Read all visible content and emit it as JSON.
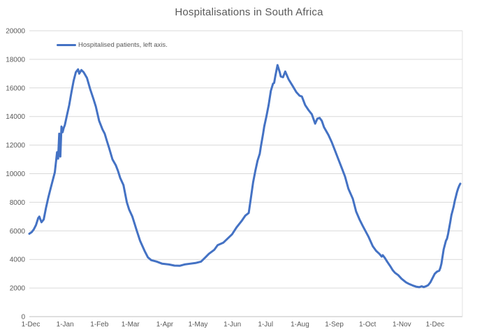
{
  "title": "Hospitalisations in South Africa",
  "legend": {
    "label": "Hospitalised patients, left axis."
  },
  "colors": {
    "background": "#FFFFFF",
    "line": "#4472C4",
    "gridline": "#D9D9D9",
    "axis_line": "#BFBFBF",
    "right_border": "#E0E0E0",
    "text": "#595959"
  },
  "chart_data": {
    "type": "line",
    "title": "Hospitalisations in South Africa",
    "xlabel": "",
    "ylabel": "",
    "grid": "horizontal",
    "legend_position": "top-left-inside",
    "legend_entries": [
      "Hospitalised patients, left axis."
    ],
    "ylim": [
      0,
      20000
    ],
    "y_ticks": [
      0,
      2000,
      4000,
      6000,
      8000,
      10000,
      12000,
      14000,
      16000,
      18000,
      20000
    ],
    "x_domain_days": [
      0,
      389
    ],
    "x_tick_days": [
      0,
      31,
      62,
      90,
      121,
      151,
      182,
      212,
      243,
      274,
      304,
      335,
      365
    ],
    "x_tick_labels": [
      "1-Dec",
      "1-Jan",
      "1-Feb",
      "1-Mar",
      "1-Apr",
      "1-May",
      "1-Jun",
      "1-Jul",
      "1-Aug",
      "1-Sep",
      "1-Oct",
      "1-Nov",
      "1-Dec"
    ],
    "series": [
      {
        "name": "Hospitalised patients, left axis.",
        "color": "#4472C4",
        "x_unit": "days since first 1-Dec",
        "points": [
          [
            0,
            5800
          ],
          [
            2,
            5900
          ],
          [
            4,
            6100
          ],
          [
            6,
            6400
          ],
          [
            8,
            6900
          ],
          [
            9,
            7000
          ],
          [
            11,
            6600
          ],
          [
            13,
            6800
          ],
          [
            15,
            7600
          ],
          [
            17,
            8300
          ],
          [
            19,
            8900
          ],
          [
            21,
            9500
          ],
          [
            23,
            10100
          ],
          [
            24,
            10800
          ],
          [
            25,
            11500
          ],
          [
            26,
            11050
          ],
          [
            27,
            12800
          ],
          [
            28,
            11200
          ],
          [
            29,
            13300
          ],
          [
            30,
            12900
          ],
          [
            31,
            13200
          ],
          [
            32,
            13400
          ],
          [
            34,
            14100
          ],
          [
            36,
            14800
          ],
          [
            38,
            15700
          ],
          [
            40,
            16500
          ],
          [
            42,
            17100
          ],
          [
            44,
            17300
          ],
          [
            45,
            17000
          ],
          [
            47,
            17250
          ],
          [
            49,
            17100
          ],
          [
            52,
            16700
          ],
          [
            55,
            15900
          ],
          [
            58,
            15200
          ],
          [
            60,
            14700
          ],
          [
            63,
            13700
          ],
          [
            66,
            13100
          ],
          [
            68,
            12800
          ],
          [
            70,
            12300
          ],
          [
            72,
            11800
          ],
          [
            75,
            11000
          ],
          [
            78,
            10600
          ],
          [
            80,
            10200
          ],
          [
            82,
            9700
          ],
          [
            85,
            9200
          ],
          [
            88,
            8000
          ],
          [
            90,
            7500
          ],
          [
            93,
            7000
          ],
          [
            95,
            6500
          ],
          [
            97,
            6000
          ],
          [
            100,
            5300
          ],
          [
            104,
            4600
          ],
          [
            107,
            4150
          ],
          [
            110,
            3950
          ],
          [
            115,
            3850
          ],
          [
            120,
            3700
          ],
          [
            126,
            3650
          ],
          [
            131,
            3570
          ],
          [
            136,
            3560
          ],
          [
            140,
            3650
          ],
          [
            145,
            3700
          ],
          [
            150,
            3750
          ],
          [
            155,
            3850
          ],
          [
            159,
            4150
          ],
          [
            162,
            4390
          ],
          [
            167,
            4680
          ],
          [
            170,
            5000
          ],
          [
            175,
            5170
          ],
          [
            179,
            5460
          ],
          [
            183,
            5760
          ],
          [
            187,
            6240
          ],
          [
            192,
            6730
          ],
          [
            195,
            7070
          ],
          [
            198,
            7250
          ],
          [
            200,
            8300
          ],
          [
            202,
            9400
          ],
          [
            204,
            10200
          ],
          [
            206,
            10900
          ],
          [
            208,
            11400
          ],
          [
            209,
            11900
          ],
          [
            211,
            12800
          ],
          [
            212,
            13300
          ],
          [
            214,
            14000
          ],
          [
            216,
            14800
          ],
          [
            218,
            15800
          ],
          [
            220,
            16300
          ],
          [
            221,
            16350
          ],
          [
            222,
            16800
          ],
          [
            223,
            17200
          ],
          [
            224,
            17600
          ],
          [
            226,
            17100
          ],
          [
            227,
            16800
          ],
          [
            229,
            16750
          ],
          [
            231,
            17150
          ],
          [
            234,
            16600
          ],
          [
            238,
            16100
          ],
          [
            241,
            15700
          ],
          [
            244,
            15450
          ],
          [
            246,
            15400
          ],
          [
            249,
            14800
          ],
          [
            252,
            14450
          ],
          [
            255,
            14150
          ],
          [
            258,
            13500
          ],
          [
            260,
            13850
          ],
          [
            262,
            13900
          ],
          [
            264,
            13700
          ],
          [
            266,
            13250
          ],
          [
            270,
            12700
          ],
          [
            273,
            12200
          ],
          [
            276,
            11600
          ],
          [
            279,
            11000
          ],
          [
            282,
            10400
          ],
          [
            285,
            9800
          ],
          [
            288,
            8950
          ],
          [
            292,
            8250
          ],
          [
            295,
            7350
          ],
          [
            298,
            6800
          ],
          [
            301,
            6340
          ],
          [
            306,
            5610
          ],
          [
            310,
            4930
          ],
          [
            313,
            4600
          ],
          [
            316,
            4390
          ],
          [
            318,
            4200
          ],
          [
            319,
            4300
          ],
          [
            321,
            4100
          ],
          [
            323,
            3850
          ],
          [
            326,
            3500
          ],
          [
            328,
            3250
          ],
          [
            330,
            3070
          ],
          [
            333,
            2900
          ],
          [
            336,
            2650
          ],
          [
            340,
            2400
          ],
          [
            343,
            2280
          ],
          [
            346,
            2180
          ],
          [
            349,
            2100
          ],
          [
            352,
            2060
          ],
          [
            354,
            2120
          ],
          [
            356,
            2070
          ],
          [
            358,
            2120
          ],
          [
            360,
            2200
          ],
          [
            362,
            2400
          ],
          [
            364,
            2700
          ],
          [
            366,
            3000
          ],
          [
            368,
            3150
          ],
          [
            370,
            3220
          ],
          [
            371,
            3400
          ],
          [
            372,
            3700
          ],
          [
            373,
            4200
          ],
          [
            374,
            4700
          ],
          [
            375,
            5000
          ],
          [
            376,
            5300
          ],
          [
            377,
            5450
          ],
          [
            378,
            5800
          ],
          [
            379,
            6200
          ],
          [
            380,
            6630
          ],
          [
            381,
            7100
          ],
          [
            382,
            7400
          ],
          [
            383,
            7700
          ],
          [
            384,
            8100
          ],
          [
            385,
            8400
          ],
          [
            386,
            8700
          ],
          [
            387,
            8950
          ],
          [
            388,
            9150
          ],
          [
            389,
            9300
          ]
        ]
      }
    ]
  }
}
